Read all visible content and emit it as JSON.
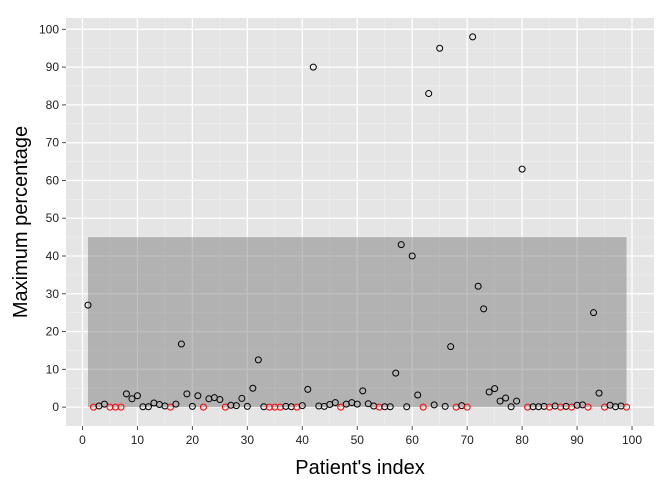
{
  "chart_data": {
    "type": "scatter",
    "xlabel": "Patient's index",
    "ylabel": "Maximum percentage",
    "xlim": [
      -3,
      104
    ],
    "ylim": [
      -5,
      103
    ],
    "x_ticks": [
      0,
      10,
      20,
      30,
      40,
      50,
      60,
      70,
      80,
      90,
      100
    ],
    "y_ticks": [
      0,
      10,
      20,
      30,
      40,
      50,
      60,
      70,
      80,
      90,
      100
    ],
    "grid": true,
    "panel_background": "#e5e5e5",
    "grid_color": "#ffffff",
    "shaded_band": {
      "x": [
        1,
        99
      ],
      "y": [
        0,
        45
      ],
      "color": "#808080"
    },
    "series_colors": {
      "black": "#000000",
      "red": "#ff0000"
    },
    "points": [
      {
        "x": 1,
        "y": 27,
        "color": "black"
      },
      {
        "x": 2,
        "y": 0,
        "color": "red"
      },
      {
        "x": 3,
        "y": 0.3,
        "color": "black"
      },
      {
        "x": 4,
        "y": 0.8,
        "color": "black"
      },
      {
        "x": 5,
        "y": 0,
        "color": "red"
      },
      {
        "x": 6,
        "y": 0,
        "color": "red"
      },
      {
        "x": 7,
        "y": 0,
        "color": "red"
      },
      {
        "x": 8,
        "y": 3.5,
        "color": "black"
      },
      {
        "x": 9,
        "y": 2.2,
        "color": "black"
      },
      {
        "x": 10,
        "y": 3,
        "color": "black"
      },
      {
        "x": 11,
        "y": 0.1,
        "color": "black"
      },
      {
        "x": 12,
        "y": 0.1,
        "color": "black"
      },
      {
        "x": 13,
        "y": 1.1,
        "color": "black"
      },
      {
        "x": 14,
        "y": 0.7,
        "color": "black"
      },
      {
        "x": 15,
        "y": 0.3,
        "color": "black"
      },
      {
        "x": 16,
        "y": 0,
        "color": "red"
      },
      {
        "x": 17,
        "y": 0.8,
        "color": "black"
      },
      {
        "x": 18,
        "y": 16.7,
        "color": "black"
      },
      {
        "x": 19,
        "y": 3.5,
        "color": "black"
      },
      {
        "x": 20,
        "y": 0.2,
        "color": "black"
      },
      {
        "x": 21,
        "y": 3,
        "color": "black"
      },
      {
        "x": 22,
        "y": 0,
        "color": "red"
      },
      {
        "x": 23,
        "y": 2.2,
        "color": "black"
      },
      {
        "x": 24,
        "y": 2.5,
        "color": "black"
      },
      {
        "x": 25,
        "y": 2,
        "color": "black"
      },
      {
        "x": 26,
        "y": 0,
        "color": "red"
      },
      {
        "x": 27,
        "y": 0.5,
        "color": "black"
      },
      {
        "x": 28,
        "y": 0.4,
        "color": "black"
      },
      {
        "x": 29,
        "y": 2.3,
        "color": "black"
      },
      {
        "x": 30,
        "y": 0.2,
        "color": "black"
      },
      {
        "x": 31,
        "y": 5,
        "color": "black"
      },
      {
        "x": 32,
        "y": 12.5,
        "color": "black"
      },
      {
        "x": 33,
        "y": 0.1,
        "color": "black"
      },
      {
        "x": 34,
        "y": 0,
        "color": "red"
      },
      {
        "x": 35,
        "y": 0,
        "color": "red"
      },
      {
        "x": 36,
        "y": 0,
        "color": "red"
      },
      {
        "x": 37,
        "y": 0.2,
        "color": "black"
      },
      {
        "x": 38,
        "y": 0.1,
        "color": "black"
      },
      {
        "x": 39,
        "y": 0,
        "color": "red"
      },
      {
        "x": 40,
        "y": 0.4,
        "color": "black"
      },
      {
        "x": 41,
        "y": 4.7,
        "color": "black"
      },
      {
        "x": 42,
        "y": 90,
        "color": "black"
      },
      {
        "x": 43,
        "y": 0.3,
        "color": "black"
      },
      {
        "x": 44,
        "y": 0.2,
        "color": "black"
      },
      {
        "x": 45,
        "y": 0.7,
        "color": "black"
      },
      {
        "x": 46,
        "y": 1.2,
        "color": "black"
      },
      {
        "x": 47,
        "y": 0,
        "color": "red"
      },
      {
        "x": 48,
        "y": 0.8,
        "color": "black"
      },
      {
        "x": 49,
        "y": 1.2,
        "color": "black"
      },
      {
        "x": 50,
        "y": 0.8,
        "color": "black"
      },
      {
        "x": 51,
        "y": 4.3,
        "color": "black"
      },
      {
        "x": 52,
        "y": 0.9,
        "color": "black"
      },
      {
        "x": 53,
        "y": 0.3,
        "color": "black"
      },
      {
        "x": 54,
        "y": 0,
        "color": "red"
      },
      {
        "x": 55,
        "y": 0.1,
        "color": "black"
      },
      {
        "x": 56,
        "y": 0.1,
        "color": "black"
      },
      {
        "x": 57,
        "y": 9,
        "color": "black"
      },
      {
        "x": 58,
        "y": 43,
        "color": "black"
      },
      {
        "x": 59,
        "y": 0.1,
        "color": "black"
      },
      {
        "x": 60,
        "y": 40,
        "color": "black"
      },
      {
        "x": 61,
        "y": 3.2,
        "color": "black"
      },
      {
        "x": 62,
        "y": 0,
        "color": "red"
      },
      {
        "x": 63,
        "y": 83,
        "color": "black"
      },
      {
        "x": 64,
        "y": 0.6,
        "color": "black"
      },
      {
        "x": 65,
        "y": 95,
        "color": "black"
      },
      {
        "x": 66,
        "y": 0.2,
        "color": "black"
      },
      {
        "x": 67,
        "y": 16,
        "color": "black"
      },
      {
        "x": 68,
        "y": 0,
        "color": "red"
      },
      {
        "x": 69,
        "y": 0.4,
        "color": "black"
      },
      {
        "x": 70,
        "y": 0,
        "color": "red"
      },
      {
        "x": 71,
        "y": 98,
        "color": "black"
      },
      {
        "x": 72,
        "y": 32,
        "color": "black"
      },
      {
        "x": 73,
        "y": 26,
        "color": "black"
      },
      {
        "x": 74,
        "y": 4,
        "color": "black"
      },
      {
        "x": 75,
        "y": 4.9,
        "color": "black"
      },
      {
        "x": 76,
        "y": 1.6,
        "color": "black"
      },
      {
        "x": 77,
        "y": 2.4,
        "color": "black"
      },
      {
        "x": 78,
        "y": 0.1,
        "color": "black"
      },
      {
        "x": 79,
        "y": 1.6,
        "color": "black"
      },
      {
        "x": 80,
        "y": 63,
        "color": "black"
      },
      {
        "x": 81,
        "y": 0,
        "color": "red"
      },
      {
        "x": 82,
        "y": 0.1,
        "color": "black"
      },
      {
        "x": 83,
        "y": 0.1,
        "color": "black"
      },
      {
        "x": 84,
        "y": 0.2,
        "color": "black"
      },
      {
        "x": 85,
        "y": 0,
        "color": "red"
      },
      {
        "x": 86,
        "y": 0.3,
        "color": "black"
      },
      {
        "x": 87,
        "y": 0,
        "color": "red"
      },
      {
        "x": 88,
        "y": 0.2,
        "color": "black"
      },
      {
        "x": 89,
        "y": 0,
        "color": "red"
      },
      {
        "x": 90,
        "y": 0.5,
        "color": "black"
      },
      {
        "x": 91,
        "y": 0.6,
        "color": "black"
      },
      {
        "x": 92,
        "y": 0,
        "color": "red"
      },
      {
        "x": 93,
        "y": 25,
        "color": "black"
      },
      {
        "x": 94,
        "y": 3.7,
        "color": "black"
      },
      {
        "x": 95,
        "y": 0,
        "color": "red"
      },
      {
        "x": 96,
        "y": 0.5,
        "color": "black"
      },
      {
        "x": 97,
        "y": 0.1,
        "color": "black"
      },
      {
        "x": 98,
        "y": 0.3,
        "color": "black"
      },
      {
        "x": 99,
        "y": 0,
        "color": "red"
      }
    ]
  }
}
